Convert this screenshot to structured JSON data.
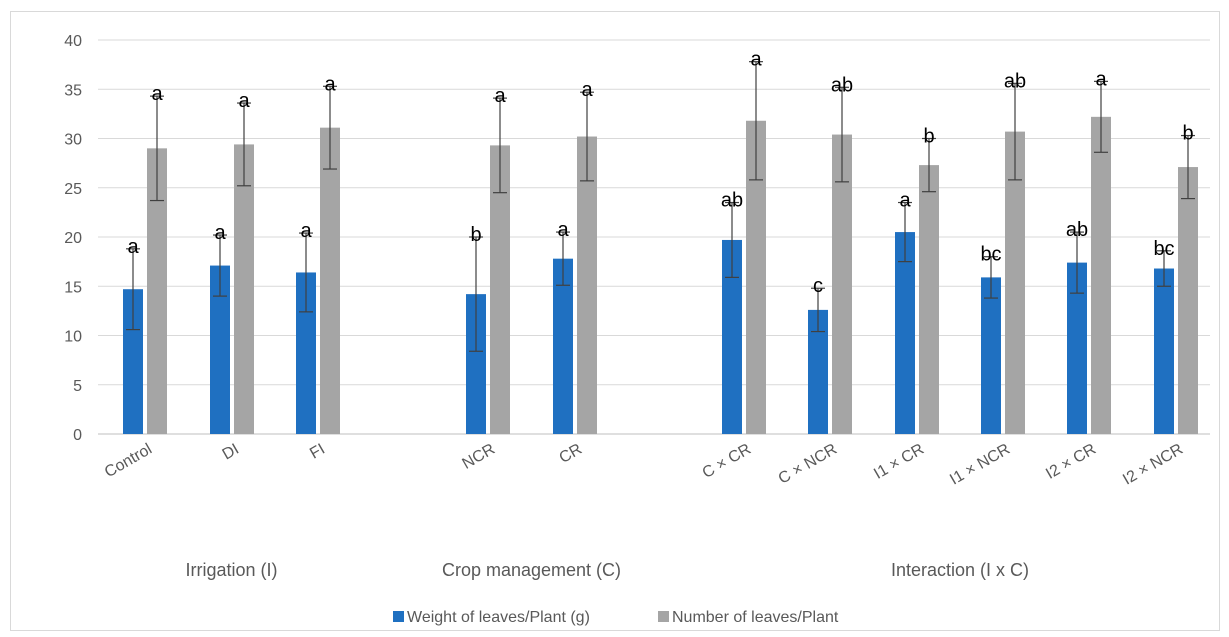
{
  "chart_data": {
    "type": "bar",
    "ylim": [
      0,
      40
    ],
    "y_ticks": [
      0,
      5,
      10,
      15,
      20,
      25,
      30,
      35,
      40
    ],
    "grid": true,
    "legend_position": "bottom",
    "categories": [
      "Control",
      "DI",
      "FI",
      "NCR",
      "CR",
      "C × CR",
      "C × NCR",
      "I1 × CR",
      "I1 × NCR",
      "I2 × CR",
      "I2 × NCR"
    ],
    "groups": [
      {
        "label": "Irrigation (I)",
        "categories": [
          "Control",
          "DI",
          "FI"
        ]
      },
      {
        "label": "Crop management (C)",
        "categories": [
          "NCR",
          "CR"
        ]
      },
      {
        "label": "Interaction (I x C)",
        "categories": [
          "C × CR",
          "C × NCR",
          "I1 × CR",
          "I1 × NCR",
          "I2 × CR",
          "I2 × NCR"
        ]
      }
    ],
    "series": [
      {
        "name": "Weight of leaves/Plant (g)",
        "color": "#1f70c1",
        "values": [
          14.7,
          17.1,
          16.4,
          14.2,
          17.8,
          19.7,
          12.6,
          20.5,
          15.9,
          17.4,
          16.8
        ],
        "error": [
          4.1,
          3.1,
          4.0,
          5.8,
          2.7,
          3.8,
          2.2,
          3.0,
          2.1,
          3.1,
          1.8
        ],
        "letters": [
          "a",
          "a",
          "a",
          "b",
          "a",
          "ab",
          "c",
          "a",
          "bc",
          "ab",
          "bc"
        ]
      },
      {
        "name": "Number of leaves/Plant",
        "color": "#a5a5a5",
        "values": [
          29.0,
          29.4,
          31.1,
          29.3,
          30.2,
          31.8,
          30.4,
          27.3,
          30.7,
          32.2,
          27.1
        ],
        "error": [
          5.3,
          4.2,
          4.2,
          4.8,
          4.5,
          6.0,
          4.8,
          2.7,
          4.9,
          3.6,
          3.2
        ],
        "letters": [
          "a",
          "a",
          "a",
          "a",
          "a",
          "a",
          "ab",
          "b",
          "ab",
          "a",
          "b"
        ]
      }
    ]
  }
}
